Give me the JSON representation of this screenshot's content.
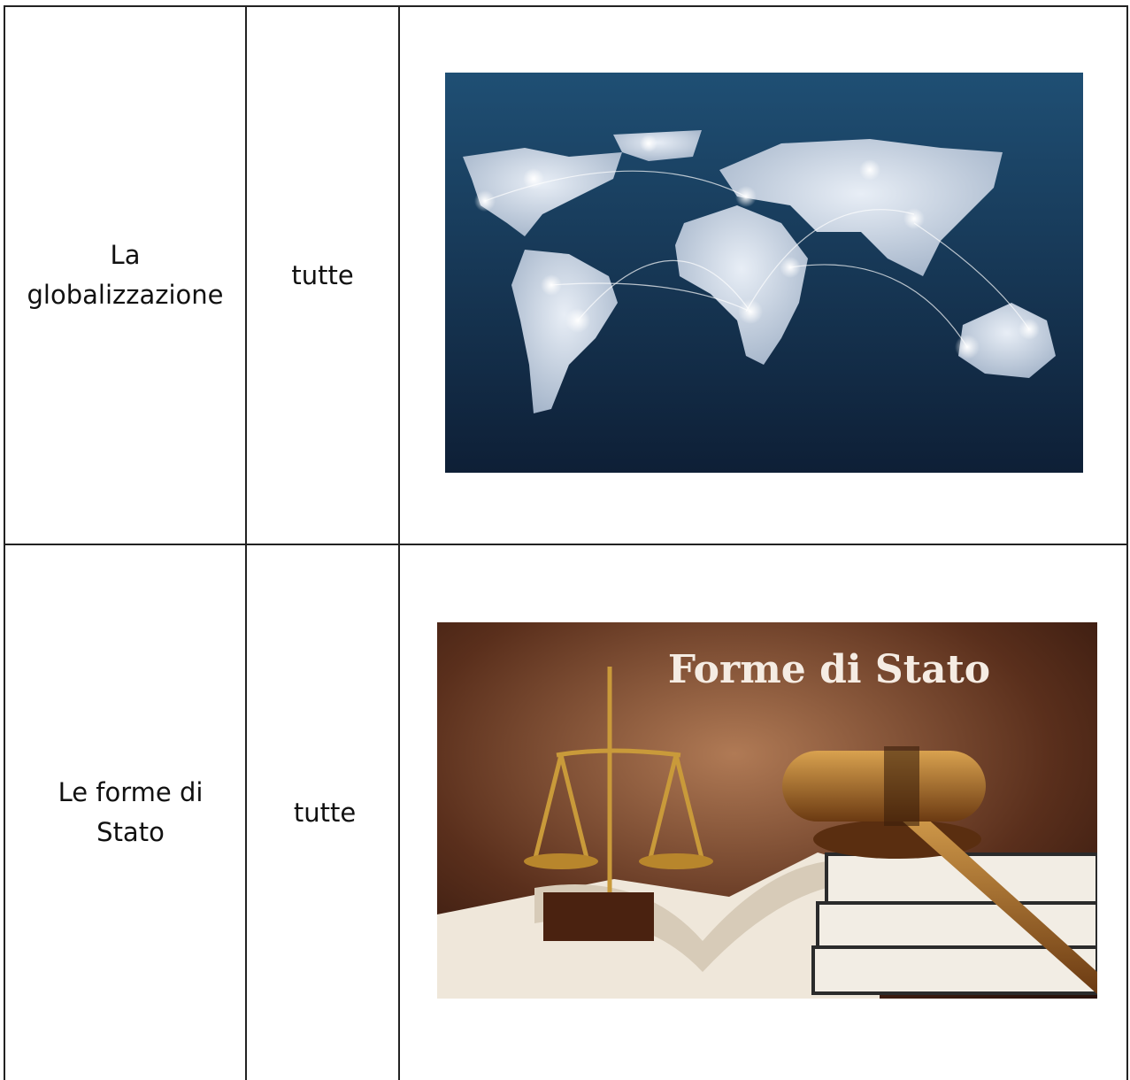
{
  "table": {
    "rows": [
      {
        "topic": "La globalizzazione",
        "classes": "tutte"
      },
      {
        "topic": "Le forme di Stato",
        "classes": "tutte",
        "image_text": "Forme di Stato"
      }
    ]
  }
}
